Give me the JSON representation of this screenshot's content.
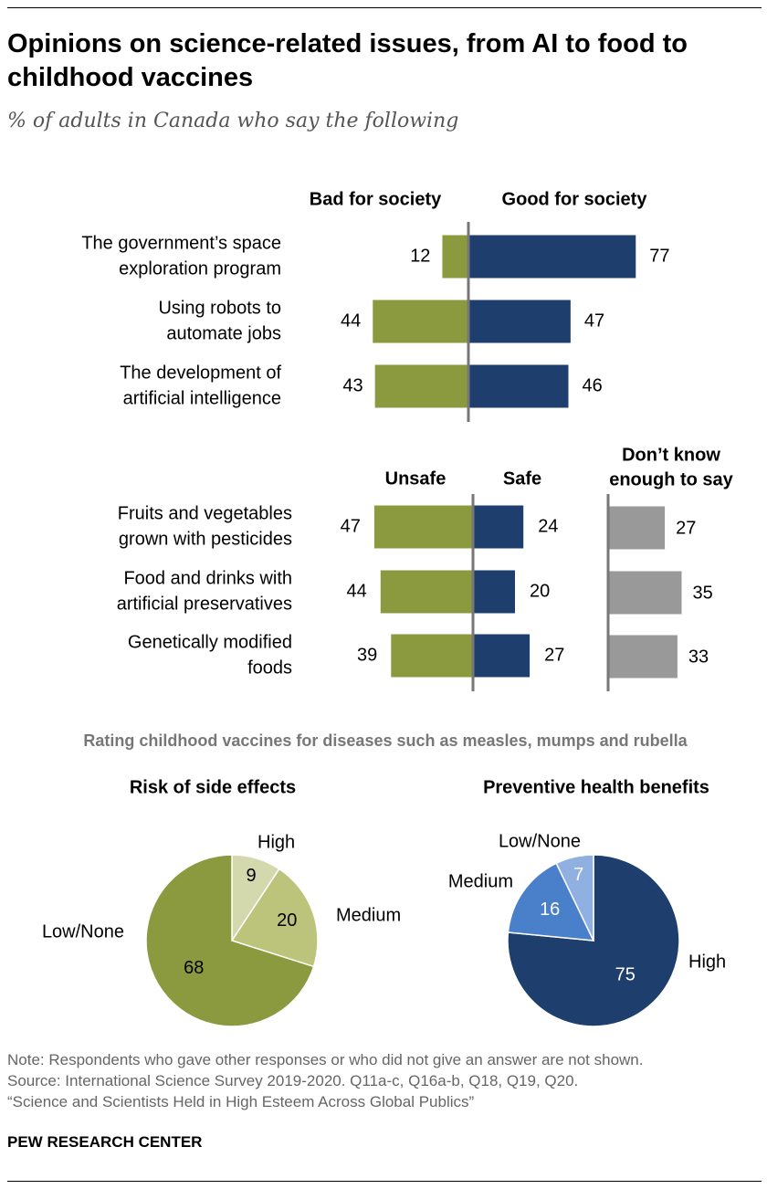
{
  "title": "Opinions on science-related issues, from AI to food to childhood vaccines",
  "subtitle": "% of adults in Canada who say the following",
  "colors": {
    "green": "#8b9a3f",
    "navy": "#1e3f6e",
    "gray": "#999999",
    "pie_light": "#d3d8ad",
    "pie_mid": "#bcc47c",
    "pie_medium_blue": "#4a7fc9",
    "pie_light_blue": "#8fb0e0"
  },
  "chart_data": [
    {
      "type": "bar",
      "subtype": "diverging",
      "headers": {
        "left": "Bad for society",
        "right": "Good for society"
      },
      "categories": [
        "The government’s space exploration program",
        "Using robots to automate jobs",
        "The development of artificial intelligence"
      ],
      "category_lines": [
        [
          "The government’s space",
          "exploration program"
        ],
        [
          "Using robots to",
          "automate jobs"
        ],
        [
          "The development of",
          "artificial intelligence"
        ]
      ],
      "series": [
        {
          "name": "Bad for society",
          "values": [
            12,
            44,
            43
          ]
        },
        {
          "name": "Good for society",
          "values": [
            77,
            47,
            46
          ]
        }
      ]
    },
    {
      "type": "bar",
      "subtype": "diverging",
      "headers": {
        "left": "Unsafe",
        "right": "Safe",
        "extra": "Don’t know enough to say"
      },
      "extra_header_lines": [
        "Don’t know",
        "enough to say"
      ],
      "categories": [
        "Fruits and vegetables grown with pesticides",
        "Food and drinks with artificial preservatives",
        "Genetically modified foods"
      ],
      "category_lines": [
        [
          "Fruits and vegetables",
          "grown with pesticides"
        ],
        [
          "Food and drinks with",
          "artificial preservatives"
        ],
        [
          "Genetically modified",
          "foods"
        ]
      ],
      "series": [
        {
          "name": "Unsafe",
          "values": [
            47,
            44,
            39
          ]
        },
        {
          "name": "Safe",
          "values": [
            24,
            20,
            27
          ]
        },
        {
          "name": "Don’t know enough to say",
          "values": [
            27,
            35,
            33
          ]
        }
      ]
    },
    {
      "type": "pie",
      "section_title": "Rating childhood vaccines for diseases such as measles, mumps and rubella",
      "title": "Risk of side effects",
      "slices": [
        {
          "label": "High",
          "value": 9
        },
        {
          "label": "Medium",
          "value": 20
        },
        {
          "label": "Low/None",
          "value": 68
        }
      ]
    },
    {
      "type": "pie",
      "title": "Preventive health benefits",
      "slices": [
        {
          "label": "High",
          "value": 75
        },
        {
          "label": "Medium",
          "value": 16
        },
        {
          "label": "Low/None",
          "value": 7
        }
      ]
    }
  ],
  "footer": {
    "note": "Note: Respondents who gave other responses or who did not give an answer are not shown.",
    "source": "Source: International Science Survey 2019-2020. Q11a-c, Q16a-b, Q18, Q19, Q20.",
    "report": "“Science and Scientists Held in High Esteem Across Global Publics”",
    "brand": "PEW RESEARCH CENTER"
  }
}
